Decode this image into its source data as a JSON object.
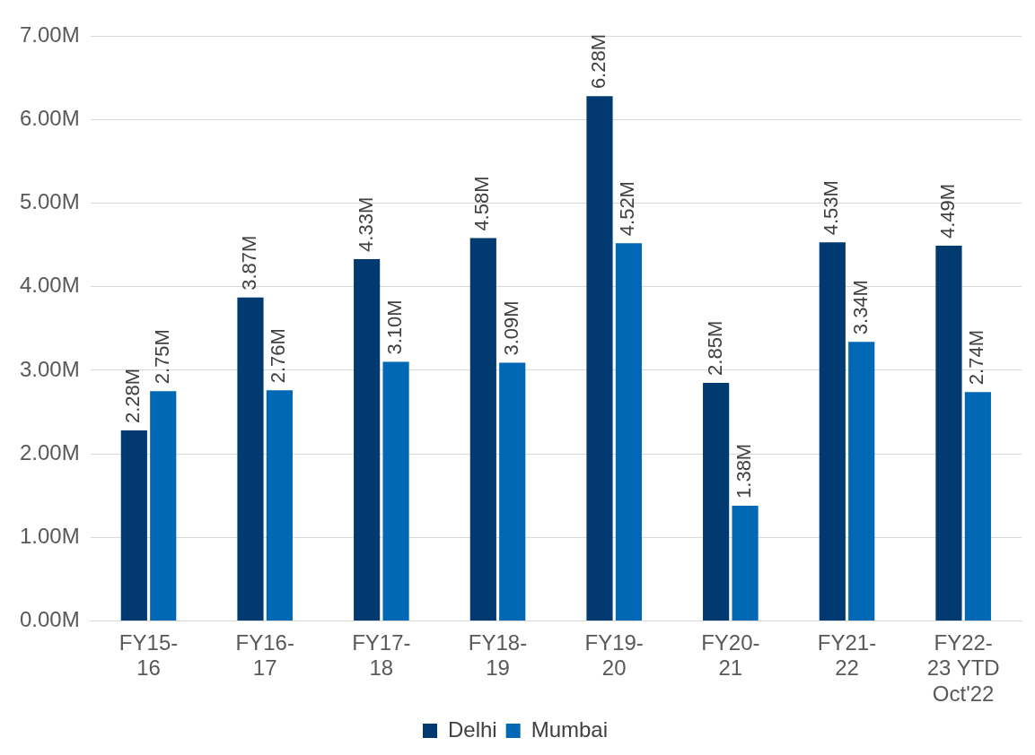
{
  "chart_data": {
    "type": "bar",
    "categories": [
      "FY15-16",
      "FY16-17",
      "FY17-18",
      "FY18-19",
      "FY19-20",
      "FY20-21",
      "FY21-22",
      "FY22-23 YTD Oct'22"
    ],
    "series": [
      {
        "name": "Delhi",
        "color": "#003a70",
        "values": [
          2.28,
          3.87,
          4.33,
          4.58,
          6.28,
          2.85,
          4.53,
          4.49
        ],
        "value_labels": [
          "2.28M",
          "3.87M",
          "4.33M",
          "4.58M",
          "6.28M",
          "2.85M",
          "4.53M",
          "4.49M"
        ]
      },
      {
        "name": "Mumbai",
        "color": "#0068b5",
        "values": [
          2.75,
          2.76,
          3.1,
          3.09,
          4.52,
          1.38,
          3.34,
          2.74
        ],
        "value_labels": [
          "2.75M",
          "2.76M",
          "3.10M",
          "3.09M",
          "4.52M",
          "1.38M",
          "3.34M",
          "2.74M"
        ]
      }
    ],
    "ylim": [
      0,
      7
    ],
    "yticks": [
      {
        "value": 0,
        "label": "0.00M"
      },
      {
        "value": 1,
        "label": "1.00M"
      },
      {
        "value": 2,
        "label": "2.00M"
      },
      {
        "value": 3,
        "label": "3.00M"
      },
      {
        "value": 4,
        "label": "4.00M"
      },
      {
        "value": 5,
        "label": "5.00M"
      },
      {
        "value": 6,
        "label": "6.00M"
      },
      {
        "value": 7,
        "label": "7.00M"
      }
    ],
    "grid": "y",
    "legend": "bottom"
  }
}
